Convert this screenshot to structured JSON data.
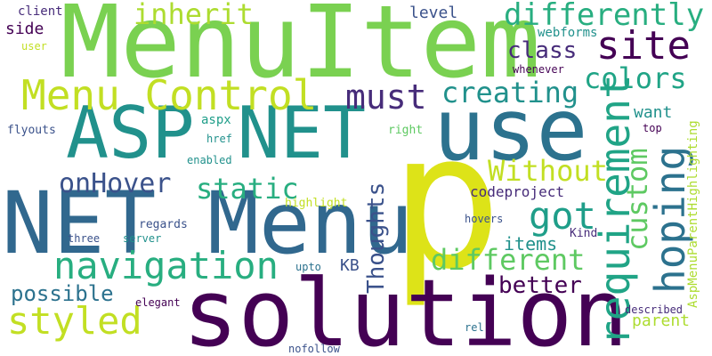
{
  "palette": {
    "background": "#ffffff",
    "dark_purple": "#440154",
    "indigo": "#472c7a",
    "blue": "#3b528b",
    "steel": "#2c728e",
    "teal": "#21918c",
    "green": "#28ae80",
    "light_green": "#5ec962",
    "lime": "#addc30",
    "yellow": "#dde318"
  },
  "words": [
    "MenuItem",
    "p",
    "solution",
    "NET Menu",
    "use",
    "ASP NET",
    "Menu Control",
    "requirement",
    "navigation",
    "hoping",
    "site",
    "differently",
    "custom",
    "styled",
    "different",
    "got",
    "must",
    "creating",
    "Thoughts",
    "colors",
    "inherit",
    "Without",
    "static",
    "onHover",
    "class",
    "better",
    "possible",
    "AspMenuParentHighlighting",
    "items",
    "want",
    "parent",
    "level",
    "KB",
    "webforms",
    "codeproject",
    "client",
    "side",
    "user",
    "whenever",
    "aspx",
    "flyouts",
    "right",
    "href",
    "top",
    "enabled",
    "highlight",
    "regards",
    "server",
    "three",
    "Kind",
    "hovers",
    "upto",
    "elegant",
    "described",
    "rel",
    "nofollow"
  ]
}
